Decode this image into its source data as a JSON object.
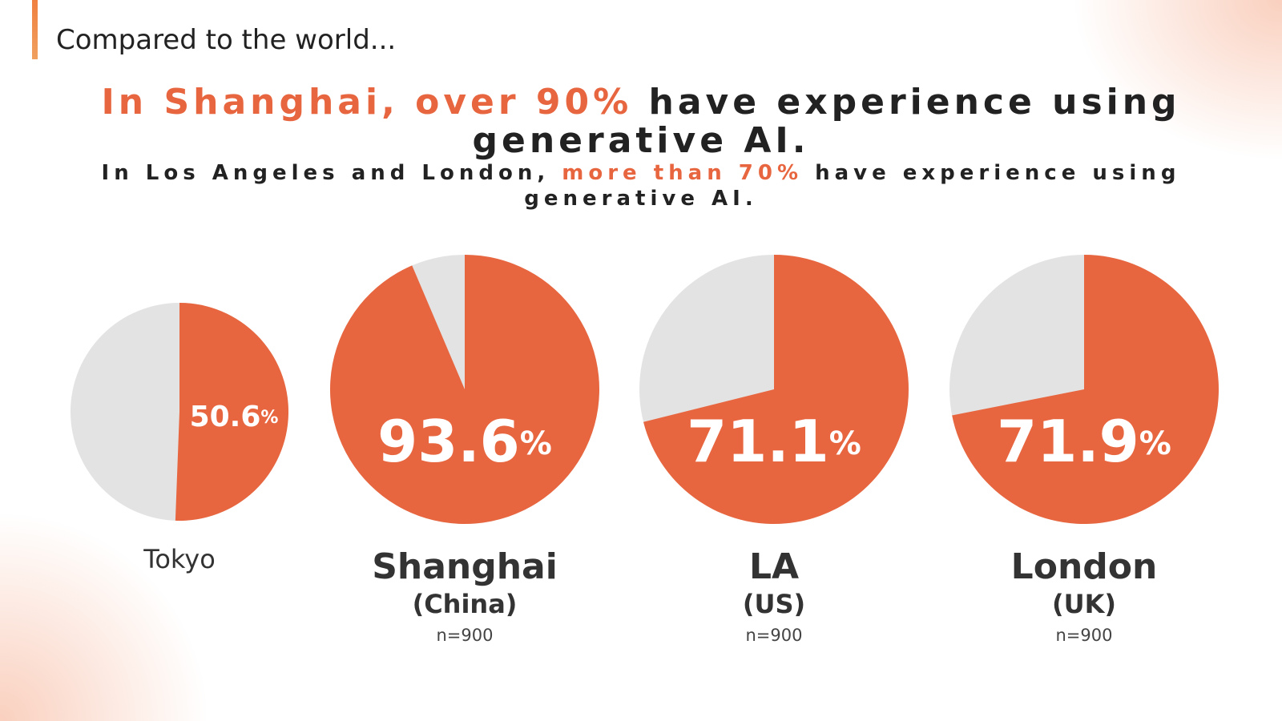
{
  "header": {
    "section": "Compared to the world...",
    "headline_highlight": "In Shanghai, over 90%",
    "headline_rest": "have experience using generative AI.",
    "sub_start": "In Los Angeles and London,",
    "sub_highlight": "more than 70%",
    "sub_end": "have experience using generative AI."
  },
  "chart_data": [
    {
      "type": "pie",
      "title": "Tokyo",
      "values": [
        50.6
      ],
      "value_labels": [
        "50.6%"
      ],
      "color": "#e8663f",
      "background_color": "#e3e3e3"
    },
    {
      "type": "pie",
      "title": "Shanghai",
      "subtitle": "(China)",
      "note": "n=900",
      "values": [
        93.6
      ],
      "value_labels": [
        "93.6%"
      ],
      "color": "#e8663f",
      "background_color": "#e3e3e3"
    },
    {
      "type": "pie",
      "title": "LA",
      "subtitle": "(US)",
      "note": "n=900",
      "values": [
        71.1
      ],
      "value_labels": [
        "71.1%"
      ],
      "color": "#e8663f",
      "background_color": "#e3e3e3"
    },
    {
      "type": "pie",
      "title": "London",
      "subtitle": "(UK)",
      "note": "n=900",
      "values": [
        71.9
      ],
      "value_labels": [
        "71.9%"
      ],
      "color": "#e8663f",
      "background_color": "#e3e3e3"
    }
  ]
}
